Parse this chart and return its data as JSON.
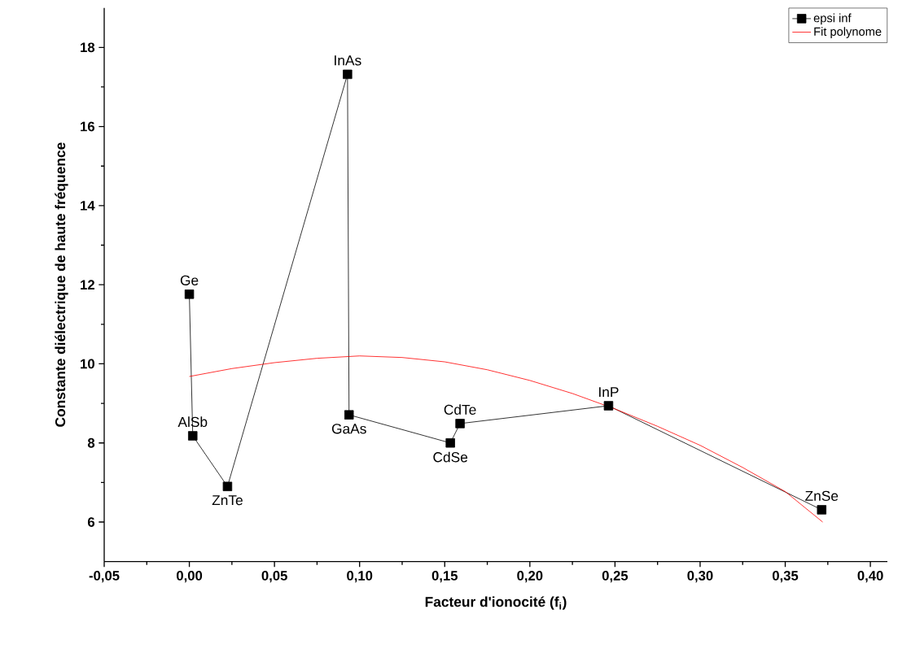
{
  "chart_data": {
    "type": "line",
    "xlabel": "Facteur d'ionocité (f$_{i}$)",
    "ylabel": "Constante diélectrique de haute fréquence",
    "xlim": [
      -0.05,
      0.41
    ],
    "ylim": [
      5,
      19
    ],
    "xticks": [
      {
        "value": -0.05,
        "label": "-0,05"
      },
      {
        "value": 0,
        "label": "0,00"
      },
      {
        "value": 0.05,
        "label": "0,05"
      },
      {
        "value": 0.1,
        "label": "0,10"
      },
      {
        "value": 0.15,
        "label": "0,15"
      },
      {
        "value": 0.2,
        "label": "0,20"
      },
      {
        "value": 0.25,
        "label": "0,25"
      },
      {
        "value": 0.3,
        "label": "0,30"
      },
      {
        "value": 0.35,
        "label": "0,35"
      },
      {
        "value": 0.4,
        "label": "0,40"
      }
    ],
    "yticks": [
      6,
      8,
      10,
      12,
      14,
      16,
      18
    ],
    "series": [
      {
        "name": "epsi inf",
        "color": "#000000",
        "marker": "square",
        "x": [
          0.0,
          0.002,
          0.0224,
          0.0929,
          0.0938,
          0.1533,
          0.159,
          0.2462,
          0.3714
        ],
        "values": [
          11.76,
          8.18,
          6.9,
          17.32,
          8.71,
          8.0,
          8.49,
          8.94,
          6.31
        ]
      },
      {
        "name": "Fit polynome",
        "color": "#ff0000",
        "marker": "none",
        "x": [
          0.0,
          0.025,
          0.05,
          0.075,
          0.1,
          0.125,
          0.15,
          0.175,
          0.2,
          0.225,
          0.25,
          0.275,
          0.3,
          0.325,
          0.35,
          0.372
        ],
        "values": [
          9.68,
          9.88,
          10.03,
          10.14,
          10.2,
          10.16,
          10.05,
          9.85,
          9.58,
          9.25,
          8.86,
          8.42,
          7.94,
          7.38,
          6.77,
          6.0
        ]
      }
    ],
    "annotations": [
      {
        "text": "Ge",
        "x": 0.0,
        "y": 11.76
      },
      {
        "text": "AlSb",
        "x": 0.002,
        "y": 8.18
      },
      {
        "text": "ZnTe",
        "x": 0.0224,
        "y": 6.9
      },
      {
        "text": "InAs",
        "x": 0.0929,
        "y": 17.32
      },
      {
        "text": "GaAs",
        "x": 0.0938,
        "y": 8.71
      },
      {
        "text": "CdSe",
        "x": 0.1533,
        "y": 8.0
      },
      {
        "text": "CdTe",
        "x": 0.159,
        "y": 8.49
      },
      {
        "text": "InP",
        "x": 0.2462,
        "y": 8.94
      },
      {
        "text": "ZnSe",
        "x": 0.3714,
        "y": 6.31
      }
    ],
    "legend": "top right",
    "grid": false
  }
}
